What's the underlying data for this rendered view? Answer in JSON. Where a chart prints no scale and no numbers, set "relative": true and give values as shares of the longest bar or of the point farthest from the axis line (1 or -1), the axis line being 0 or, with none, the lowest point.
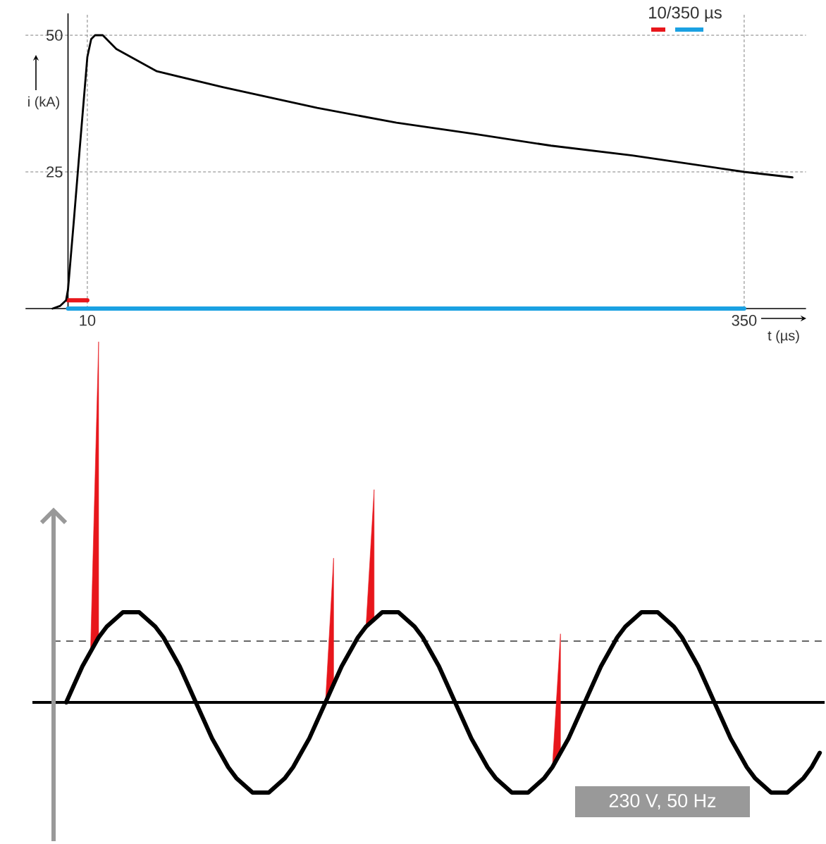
{
  "chart_data": [
    {
      "type": "line",
      "xlabel": "t (µs)",
      "ylabel": "i (kA)",
      "x": [
        -8,
        -4,
        -1,
        0,
        3,
        6,
        10,
        12,
        14,
        18,
        25,
        46,
        80,
        129,
        170,
        211,
        250,
        292,
        350,
        375
      ],
      "series": [
        {
          "color": "#000000",
          "values": [
            0,
            0.5,
            1.5,
            3.5,
            16,
            29,
            46,
            49.3,
            50,
            50,
            47.5,
            43.4,
            40.5,
            36.7,
            34,
            31.9,
            29.8,
            28,
            25,
            24
          ]
        },
        {
          "color": "#e8161b",
          "x": [
            0,
            10
          ],
          "values": [
            1.5,
            1.5
          ]
        },
        {
          "color": "#1ba1e2",
          "x": [
            0,
            350
          ],
          "values": [
            0,
            0
          ]
        }
      ],
      "xlim": [
        -22,
        382
      ],
      "ylim": [
        0,
        54
      ],
      "xticks": [
        10,
        350
      ],
      "yticks": [
        25,
        50
      ],
      "grid": true,
      "annotations": [
        "10/350 µs"
      ]
    },
    {
      "type": "line",
      "relative": true,
      "categories": [
        null,
        null,
        null,
        null,
        null,
        null,
        null,
        null,
        null,
        null,
        null,
        null,
        null,
        null,
        null,
        null,
        null,
        null,
        null,
        null,
        null,
        null,
        null,
        null,
        null,
        null,
        null,
        null,
        null,
        null,
        null,
        null,
        null,
        null,
        null,
        null,
        null,
        null,
        null,
        null,
        null,
        null,
        null,
        null,
        null,
        null,
        null,
        null,
        null,
        null,
        null,
        null,
        null,
        null,
        null,
        null,
        null,
        null,
        null,
        null,
        null,
        null,
        null,
        null,
        null,
        null,
        null,
        null,
        null,
        null,
        null,
        null,
        null,
        null,
        null,
        null,
        null,
        null,
        null,
        null,
        null,
        null,
        null,
        null,
        null,
        null,
        null,
        null,
        null,
        null,
        null,
        null,
        null,
        null
      ],
      "series": [
        {
          "color": "#000000",
          "values": [
            0,
            0.05,
            0.1,
            0.14,
            0.18,
            0.21,
            0.23,
            0.25,
            0.25,
            0.25,
            0.23,
            0.21,
            0.18,
            0.14,
            0.1,
            0.05,
            0,
            -0.05,
            -0.1,
            -0.14,
            -0.18,
            -0.21,
            -0.23,
            -0.25,
            -0.25,
            -0.25,
            -0.23,
            -0.21,
            -0.18,
            -0.14,
            -0.1,
            -0.05,
            0,
            0.05,
            0.1,
            0.14,
            0.18,
            0.21,
            0.23,
            0.25,
            0.25,
            0.25,
            0.23,
            0.21,
            0.18,
            0.14,
            0.1,
            0.05,
            0,
            -0.05,
            -0.1,
            -0.14,
            -0.18,
            -0.21,
            -0.23,
            -0.25,
            -0.25,
            -0.25,
            -0.23,
            -0.21,
            -0.18,
            -0.14,
            -0.1,
            -0.05,
            0,
            0.05,
            0.1,
            0.14,
            0.18,
            0.21,
            0.23,
            0.25,
            0.25,
            0.25,
            0.23,
            0.21,
            0.18,
            0.14,
            0.1,
            0.05,
            0,
            -0.05,
            -0.1,
            -0.14,
            -0.18,
            -0.21,
            -0.23,
            -0.25,
            -0.25,
            -0.25,
            -0.23,
            -0.21,
            -0.18,
            -0.14
          ]
        },
        {
          "type": "area",
          "color": "#e8161b",
          "values": [
            null,
            null,
            null,
            0.14,
            1.0,
            null,
            null,
            null,
            null,
            null,
            null,
            null,
            null,
            null,
            null,
            null,
            null,
            null,
            null,
            null,
            null,
            null,
            null,
            null,
            null,
            null,
            null,
            null,
            null,
            null,
            null,
            null,
            0,
            0.4,
            null,
            null,
            null,
            0.21,
            0.59,
            null,
            null,
            null,
            null,
            null,
            null,
            null,
            null,
            null,
            null,
            null,
            null,
            null,
            null,
            null,
            null,
            null,
            null,
            null,
            null,
            null,
            -0.18,
            0.19,
            null,
            null,
            null,
            null,
            null,
            null,
            null,
            null,
            null,
            null,
            null,
            null,
            null,
            null,
            null,
            null,
            null,
            null,
            null,
            null,
            null,
            null,
            null,
            null,
            null,
            null,
            null,
            null,
            null,
            null,
            null,
            null
          ]
        }
      ],
      "ref_lines": [
        {
          "axis": "y",
          "value": 0.17,
          "color": "#666666",
          "line_style": "dashed"
        }
      ],
      "annotations": [
        "230 V, 50 Hz"
      ]
    }
  ]
}
